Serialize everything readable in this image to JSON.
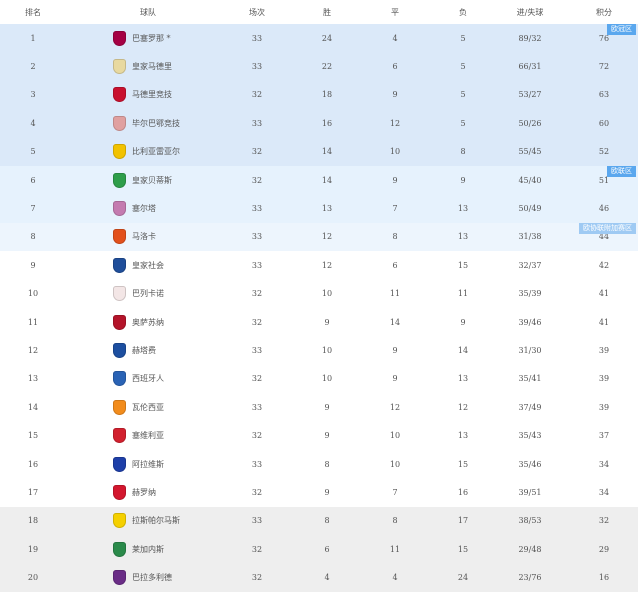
{
  "headers": {
    "rank": "排名",
    "team": "球队",
    "played": "场次",
    "won": "胜",
    "drawn": "平",
    "lost": "负",
    "goals": "进/失球",
    "points": "积分"
  },
  "zones": {
    "champions": {
      "label": "欧冠区",
      "color": "#dbe9f9"
    },
    "europa": {
      "label": "欧联区",
      "color": "#e6f2fd"
    },
    "conference": {
      "label": "欧协联附加赛区",
      "color": "#edf5fd"
    },
    "relegation": {
      "color": "#eeeeee"
    }
  },
  "rows": [
    {
      "rank": "1",
      "team": "巴塞罗那 *",
      "played": "33",
      "won": "24",
      "drawn": "4",
      "lost": "5",
      "goals": "89/32",
      "points": "76",
      "crest": "#a50044",
      "zone": "champions"
    },
    {
      "rank": "2",
      "team": "皇家马德里",
      "played": "33",
      "won": "22",
      "drawn": "6",
      "lost": "5",
      "goals": "66/31",
      "points": "72",
      "crest": "#e8d9a0",
      "zone": "champions"
    },
    {
      "rank": "3",
      "team": "马德里竞技",
      "played": "32",
      "won": "18",
      "drawn": "9",
      "lost": "5",
      "goals": "53/27",
      "points": "63",
      "crest": "#c8102e",
      "zone": "champions"
    },
    {
      "rank": "4",
      "team": "毕尔巴鄂竞技",
      "played": "33",
      "won": "16",
      "drawn": "12",
      "lost": "5",
      "goals": "50/26",
      "points": "60",
      "crest": "#e0a0a0",
      "zone": "champions"
    },
    {
      "rank": "5",
      "team": "比利亚雷亚尔",
      "played": "32",
      "won": "14",
      "drawn": "10",
      "lost": "8",
      "goals": "55/45",
      "points": "52",
      "crest": "#f2c200",
      "zone": "champions"
    },
    {
      "rank": "6",
      "team": "皇家贝蒂斯",
      "played": "32",
      "won": "14",
      "drawn": "9",
      "lost": "9",
      "goals": "45/40",
      "points": "51",
      "crest": "#2e9e4a",
      "zone": "europa"
    },
    {
      "rank": "7",
      "team": "塞尔塔",
      "played": "33",
      "won": "13",
      "drawn": "7",
      "lost": "13",
      "goals": "50/49",
      "points": "46",
      "crest": "#c47bb0",
      "zone": "europa"
    },
    {
      "rank": "8",
      "team": "马洛卡",
      "played": "33",
      "won": "12",
      "drawn": "8",
      "lost": "13",
      "goals": "31/38",
      "points": "44",
      "crest": "#e2501c",
      "zone": "conference"
    },
    {
      "rank": "9",
      "team": "皇家社会",
      "played": "33",
      "won": "12",
      "drawn": "6",
      "lost": "15",
      "goals": "32/37",
      "points": "42",
      "crest": "#1f4e9a",
      "zone": ""
    },
    {
      "rank": "10",
      "team": "巴列卡诺",
      "played": "32",
      "won": "10",
      "drawn": "11",
      "lost": "11",
      "goals": "35/39",
      "points": "41",
      "crest": "#f3e6e6",
      "zone": ""
    },
    {
      "rank": "11",
      "team": "奥萨苏纳",
      "played": "32",
      "won": "9",
      "drawn": "14",
      "lost": "9",
      "goals": "39/46",
      "points": "41",
      "crest": "#b4142a",
      "zone": ""
    },
    {
      "rank": "12",
      "team": "赫塔费",
      "played": "33",
      "won": "10",
      "drawn": "9",
      "lost": "14",
      "goals": "31/30",
      "points": "39",
      "crest": "#1d4fa0",
      "zone": ""
    },
    {
      "rank": "13",
      "team": "西班牙人",
      "played": "32",
      "won": "10",
      "drawn": "9",
      "lost": "13",
      "goals": "35/41",
      "points": "39",
      "crest": "#2a63b5",
      "zone": ""
    },
    {
      "rank": "14",
      "team": "瓦伦西亚",
      "played": "33",
      "won": "9",
      "drawn": "12",
      "lost": "12",
      "goals": "37/49",
      "points": "39",
      "crest": "#f28c1c",
      "zone": ""
    },
    {
      "rank": "15",
      "team": "塞维利亚",
      "played": "32",
      "won": "9",
      "drawn": "10",
      "lost": "13",
      "goals": "35/43",
      "points": "37",
      "crest": "#d2202e",
      "zone": ""
    },
    {
      "rank": "16",
      "team": "阿拉维斯",
      "played": "33",
      "won": "8",
      "drawn": "10",
      "lost": "15",
      "goals": "35/46",
      "points": "34",
      "crest": "#1e3fa8",
      "zone": ""
    },
    {
      "rank": "17",
      "team": "赫罗纳",
      "played": "32",
      "won": "9",
      "drawn": "7",
      "lost": "16",
      "goals": "39/51",
      "points": "34",
      "crest": "#d3172e",
      "zone": ""
    },
    {
      "rank": "18",
      "team": "拉斯帕尔马斯",
      "played": "33",
      "won": "8",
      "drawn": "8",
      "lost": "17",
      "goals": "38/53",
      "points": "32",
      "crest": "#f5d000",
      "zone": "relegation"
    },
    {
      "rank": "19",
      "team": "莱加内斯",
      "played": "32",
      "won": "6",
      "drawn": "11",
      "lost": "15",
      "goals": "29/48",
      "points": "29",
      "crest": "#2a8a4a",
      "zone": "relegation"
    },
    {
      "rank": "20",
      "team": "巴拉多利德",
      "played": "32",
      "won": "4",
      "drawn": "4",
      "lost": "24",
      "goals": "23/76",
      "points": "16",
      "crest": "#6a2c86",
      "zone": "relegation"
    }
  ]
}
